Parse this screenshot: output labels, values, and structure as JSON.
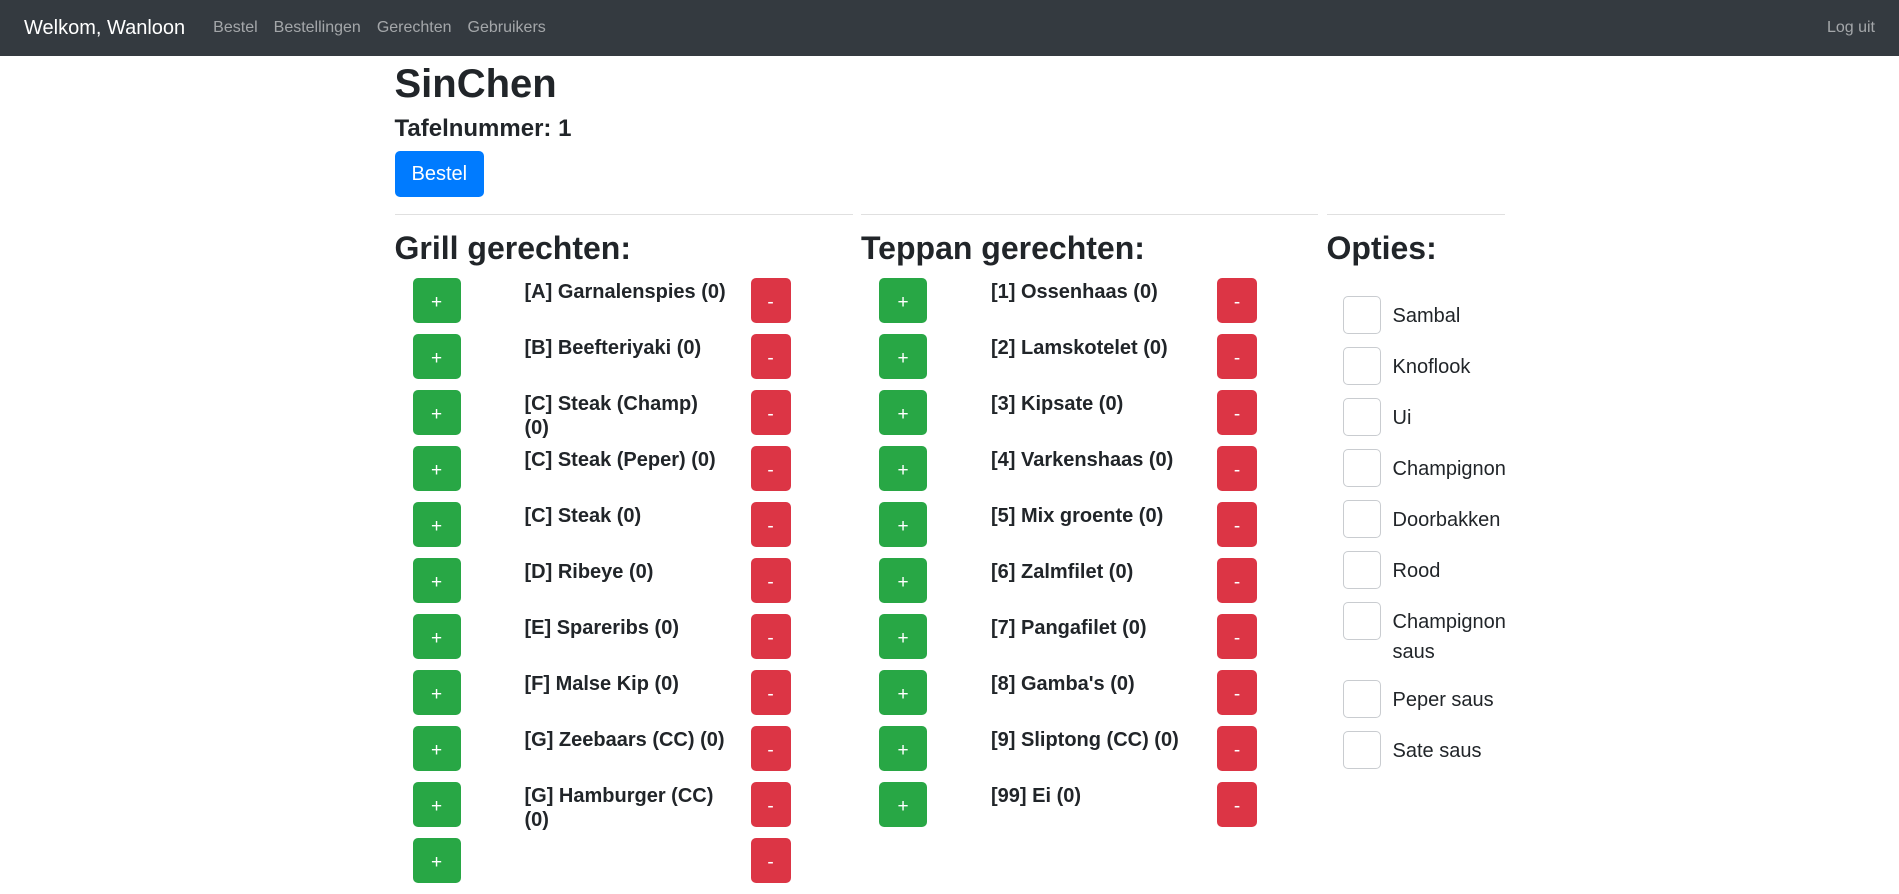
{
  "navbar": {
    "brand": "Welkom, Wanloon",
    "links": [
      {
        "label": "Bestel"
      },
      {
        "label": "Bestellingen"
      },
      {
        "label": "Gerechten"
      },
      {
        "label": "Gebruikers"
      }
    ],
    "logout_label": "Log uit"
  },
  "header": {
    "title": "SinChen",
    "table_number_label": "Tafelnummer: 1",
    "order_button_label": "Bestel"
  },
  "controls": {
    "plus_label": "+",
    "minus_label": "-"
  },
  "sections": {
    "grill": {
      "heading": "Grill gerechten:",
      "items": [
        {
          "label": "[A] Garnalenspies (0)"
        },
        {
          "label": "[B] Beefteriyaki (0)"
        },
        {
          "label": "[C] Steak (Champ) (0)"
        },
        {
          "label": "[C] Steak (Peper) (0)"
        },
        {
          "label": "[C] Steak (0)"
        },
        {
          "label": "[D] Ribeye (0)"
        },
        {
          "label": "[E] Spareribs (0)"
        },
        {
          "label": "[F] Malse Kip (0)"
        },
        {
          "label": "[G] Zeebaars (CC) (0)"
        },
        {
          "label": "[G] Hamburger (CC) (0)"
        },
        {
          "label": ""
        }
      ]
    },
    "teppan": {
      "heading": "Teppan gerechten:",
      "items": [
        {
          "label": "[1] Ossenhaas (0)"
        },
        {
          "label": "[2] Lamskotelet (0)"
        },
        {
          "label": "[3] Kipsate (0)"
        },
        {
          "label": "[4] Varkenshaas (0)"
        },
        {
          "label": "[5] Mix groente (0)"
        },
        {
          "label": "[6] Zalmfilet (0)"
        },
        {
          "label": "[7] Pangafilet (0)"
        },
        {
          "label": "[8] Gamba's (0)"
        },
        {
          "label": "[9] Sliptong (CC) (0)"
        },
        {
          "label": "[99] Ei (0)"
        }
      ]
    },
    "opties": {
      "heading": "Opties:",
      "options": [
        {
          "label": "Sambal"
        },
        {
          "label": "Knoflook"
        },
        {
          "label": "Ui"
        },
        {
          "label": "Champignon"
        },
        {
          "label": "Doorbakken"
        },
        {
          "label": "Rood"
        },
        {
          "label": "Champignon saus"
        },
        {
          "label": "Peper saus"
        },
        {
          "label": "Sate saus"
        }
      ]
    }
  },
  "colors": {
    "navbar_bg": "#343a40",
    "primary_blue": "#007bff",
    "success_green": "#28a745",
    "danger_red": "#dc3545",
    "text": "#212529"
  }
}
